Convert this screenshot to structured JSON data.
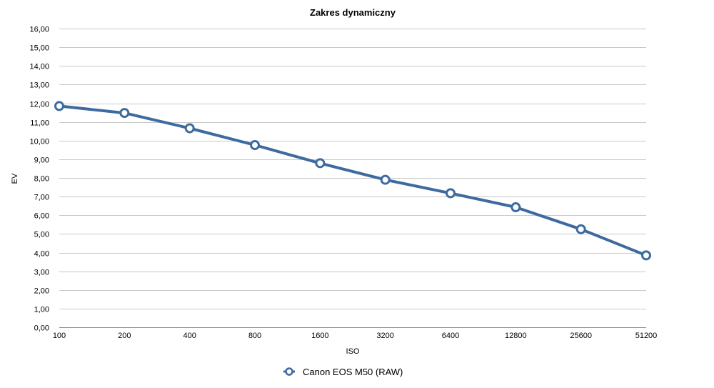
{
  "chart_data": {
    "type": "line",
    "title": "Zakres dynamiczny",
    "xlabel": "ISO",
    "ylabel": "EV",
    "categories": [
      "100",
      "200",
      "400",
      "800",
      "1600",
      "3200",
      "6400",
      "12800",
      "25600",
      "51200"
    ],
    "y_ticks": [
      "0,00",
      "1,00",
      "2,00",
      "3,00",
      "4,00",
      "5,00",
      "6,00",
      "7,00",
      "8,00",
      "9,00",
      "10,00",
      "11,00",
      "12,00",
      "13,00",
      "14,00",
      "15,00",
      "16,00"
    ],
    "ylim": [
      0,
      16
    ],
    "grid": true,
    "legend_position": "bottom",
    "series": [
      {
        "name": "Canon EOS M50 (RAW)",
        "color": "#3d6a9f",
        "marker": "hollow-circle",
        "values": [
          11.85,
          11.48,
          10.66,
          9.76,
          8.79,
          7.9,
          7.18,
          6.43,
          5.25,
          3.85
        ]
      }
    ]
  }
}
